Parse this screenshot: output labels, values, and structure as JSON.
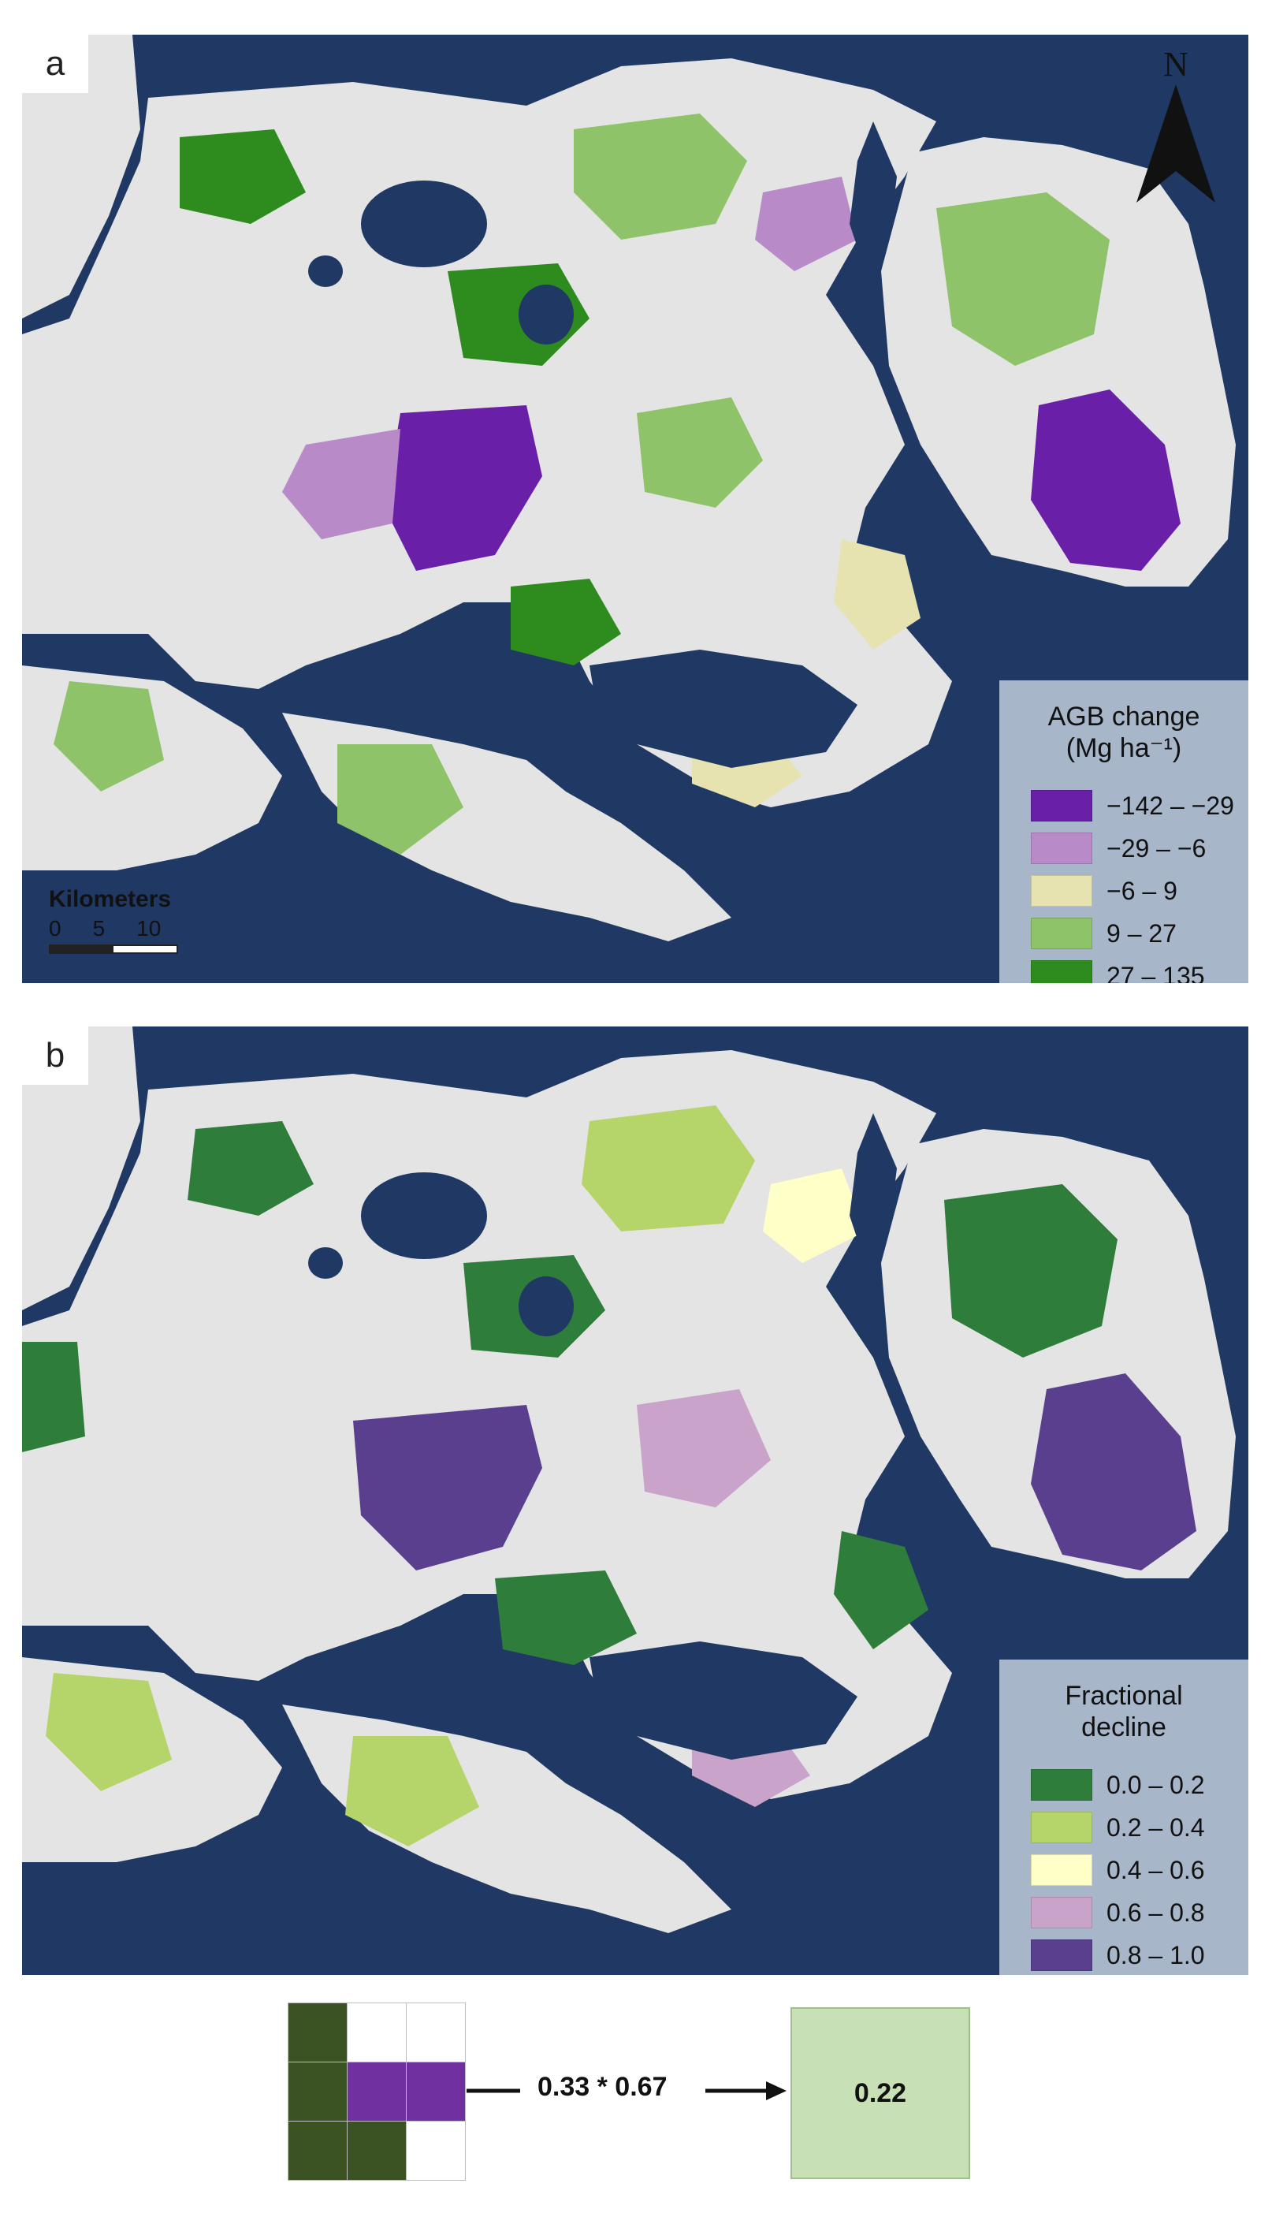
{
  "panel_a": {
    "label": "a",
    "legend": {
      "title": "AGB change",
      "unit": "(Mg ha⁻¹)",
      "items": [
        {
          "label": "−142 – −29",
          "color": "#6a1fa8"
        },
        {
          "label": "−29 – −6",
          "color": "#b98ac8"
        },
        {
          "label": "−6 – 9",
          "color": "#e6e3b0"
        },
        {
          "label": "9 – 27",
          "color": "#8ec36a"
        },
        {
          "label": "27 – 135",
          "color": "#2e8b1e"
        }
      ]
    },
    "scalebar": {
      "title": "Kilometers",
      "ticks": [
        "0",
        "5",
        "10"
      ]
    },
    "north_label": "N"
  },
  "panel_b": {
    "label": "b",
    "legend": {
      "title": "Fractional decline",
      "items": [
        {
          "label": "0.0 – 0.2",
          "color": "#2f7d3a"
        },
        {
          "label": "0.2 – 0.4",
          "color": "#b5d56a"
        },
        {
          "label": "0.4 – 0.6",
          "color": "#ffffc8"
        },
        {
          "label": "0.6 – 0.8",
          "color": "#c9a3c9"
        },
        {
          "label": "0.8 – 1.0",
          "color": "#5b3f8f"
        }
      ]
    }
  },
  "colors": {
    "water": "#1f3864",
    "land_unchanged": "#e4e4e4",
    "dark_green_cell": "#3b5323",
    "purple_cell": "#7030a0",
    "result_fill": "#c7e0b6"
  },
  "diagram": {
    "grid": [
      [
        "dark",
        "white",
        "white"
      ],
      [
        "dark",
        "purple",
        "purple"
      ],
      [
        "dark",
        "dark",
        "white"
      ]
    ],
    "formula": "0.33 * 0.67",
    "result": "0.22"
  }
}
